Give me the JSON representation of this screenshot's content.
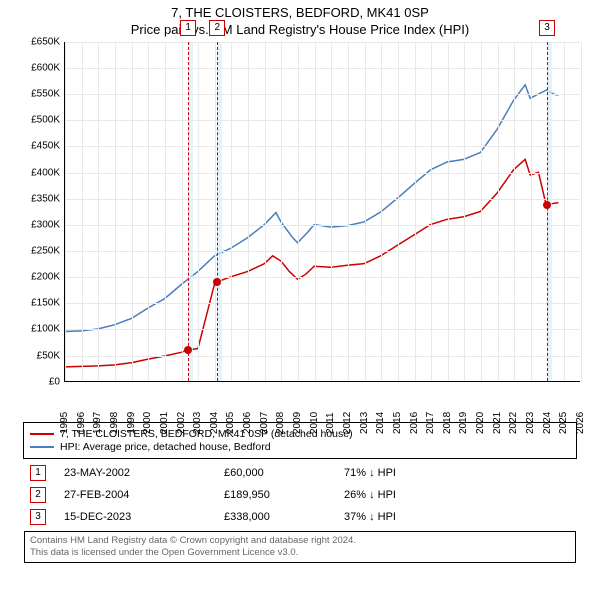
{
  "title_line1": "7, THE CLOISTERS, BEDFORD, MK41 0SP",
  "title_line2": "Price paid vs. HM Land Registry's House Price Index (HPI)",
  "chart": {
    "type": "line",
    "background_color": "#ffffff",
    "grid_color": "#e8e8e8",
    "line_width": 1.5,
    "x": {
      "min": 1995,
      "max": 2026,
      "ticks": [
        1995,
        1996,
        1997,
        1998,
        1999,
        2000,
        2001,
        2002,
        2003,
        2004,
        2005,
        2006,
        2007,
        2008,
        2009,
        2010,
        2011,
        2012,
        2013,
        2014,
        2015,
        2016,
        2017,
        2018,
        2019,
        2020,
        2021,
        2022,
        2023,
        2024,
        2025,
        2026
      ],
      "label_fontsize": 10
    },
    "y": {
      "min": 0,
      "max": 650000,
      "step": 50000,
      "prefix": "£",
      "suffix": "K",
      "ticks": [
        "£0",
        "£50K",
        "£100K",
        "£150K",
        "£200K",
        "£250K",
        "£300K",
        "£350K",
        "£400K",
        "£450K",
        "£500K",
        "£550K",
        "£600K",
        "£650K"
      ],
      "label_fontsize": 10
    },
    "series": [
      {
        "name": "property",
        "label": "7, THE CLOISTERS, BEDFORD, MK41 0SP (detached house)",
        "color": "#cc0000",
        "points": [
          [
            1995.0,
            27000
          ],
          [
            1996.0,
            28000
          ],
          [
            1997.0,
            29000
          ],
          [
            1998.0,
            31000
          ],
          [
            1999.0,
            35000
          ],
          [
            2000.0,
            42000
          ],
          [
            2001.0,
            48000
          ],
          [
            2002.0,
            55000
          ],
          [
            2002.4,
            60000
          ],
          [
            2003.0,
            62000
          ],
          [
            2004.0,
            186000
          ],
          [
            2004.15,
            189950
          ],
          [
            2005.0,
            200000
          ],
          [
            2006.0,
            210000
          ],
          [
            2007.0,
            225000
          ],
          [
            2007.5,
            240000
          ],
          [
            2008.0,
            230000
          ],
          [
            2008.5,
            210000
          ],
          [
            2009.0,
            195000
          ],
          [
            2009.5,
            205000
          ],
          [
            2010.0,
            220000
          ],
          [
            2011.0,
            218000
          ],
          [
            2012.0,
            222000
          ],
          [
            2013.0,
            225000
          ],
          [
            2014.0,
            240000
          ],
          [
            2015.0,
            260000
          ],
          [
            2016.0,
            280000
          ],
          [
            2017.0,
            300000
          ],
          [
            2018.0,
            310000
          ],
          [
            2019.0,
            315000
          ],
          [
            2020.0,
            325000
          ],
          [
            2021.0,
            360000
          ],
          [
            2022.0,
            405000
          ],
          [
            2022.7,
            425000
          ],
          [
            2023.0,
            395000
          ],
          [
            2023.5,
            400000
          ],
          [
            2023.96,
            338000
          ],
          [
            2024.3,
            340000
          ],
          [
            2024.7,
            342000
          ]
        ]
      },
      {
        "name": "hpi",
        "label": "HPI: Average price, detached house, Bedford",
        "color": "#4a7ebb",
        "points": [
          [
            1995.0,
            95000
          ],
          [
            1996.0,
            96000
          ],
          [
            1997.0,
            100000
          ],
          [
            1998.0,
            108000
          ],
          [
            1999.0,
            120000
          ],
          [
            2000.0,
            140000
          ],
          [
            2001.0,
            158000
          ],
          [
            2002.0,
            185000
          ],
          [
            2003.0,
            210000
          ],
          [
            2004.0,
            240000
          ],
          [
            2005.0,
            255000
          ],
          [
            2006.0,
            275000
          ],
          [
            2007.0,
            300000
          ],
          [
            2007.7,
            323000
          ],
          [
            2008.0,
            305000
          ],
          [
            2008.7,
            275000
          ],
          [
            2009.0,
            265000
          ],
          [
            2009.6,
            285000
          ],
          [
            2010.0,
            300000
          ],
          [
            2011.0,
            295000
          ],
          [
            2012.0,
            298000
          ],
          [
            2013.0,
            305000
          ],
          [
            2014.0,
            324000
          ],
          [
            2015.0,
            350000
          ],
          [
            2016.0,
            378000
          ],
          [
            2017.0,
            405000
          ],
          [
            2018.0,
            420000
          ],
          [
            2019.0,
            425000
          ],
          [
            2020.0,
            438000
          ],
          [
            2021.0,
            482000
          ],
          [
            2022.0,
            538000
          ],
          [
            2022.7,
            568000
          ],
          [
            2023.0,
            542000
          ],
          [
            2023.6,
            552000
          ],
          [
            2024.0,
            558000
          ],
          [
            2024.4,
            550000
          ],
          [
            2024.7,
            548000
          ]
        ]
      }
    ],
    "markers": [
      {
        "n": "1",
        "x": 2002.4,
        "y": 60000,
        "band_width_years": 0.3
      },
      {
        "n": "2",
        "x": 2004.15,
        "y": 189950,
        "band_width_years": 0.3
      },
      {
        "n": "3",
        "x": 2023.96,
        "y": 338000,
        "band_width_years": 0.3
      }
    ],
    "marker_box_border": "#cc0000",
    "marker_band_color": "#dceefa",
    "point_radius": 4
  },
  "legend": {
    "items": [
      {
        "color": "#cc0000",
        "label": "7, THE CLOISTERS, BEDFORD, MK41 0SP (detached house)"
      },
      {
        "color": "#4a7ebb",
        "label": "HPI: Average price, detached house, Bedford"
      }
    ]
  },
  "transactions": [
    {
      "n": "1",
      "date": "23-MAY-2002",
      "price": "£60,000",
      "rel": "71% ↓ HPI"
    },
    {
      "n": "2",
      "date": "27-FEB-2004",
      "price": "£189,950",
      "rel": "26% ↓ HPI"
    },
    {
      "n": "3",
      "date": "15-DEC-2023",
      "price": "£338,000",
      "rel": "37% ↓ HPI"
    }
  ],
  "disclaimer_line1": "Contains HM Land Registry data © Crown copyright and database right 2024.",
  "disclaimer_line2": "This data is licensed under the Open Government Licence v3.0."
}
